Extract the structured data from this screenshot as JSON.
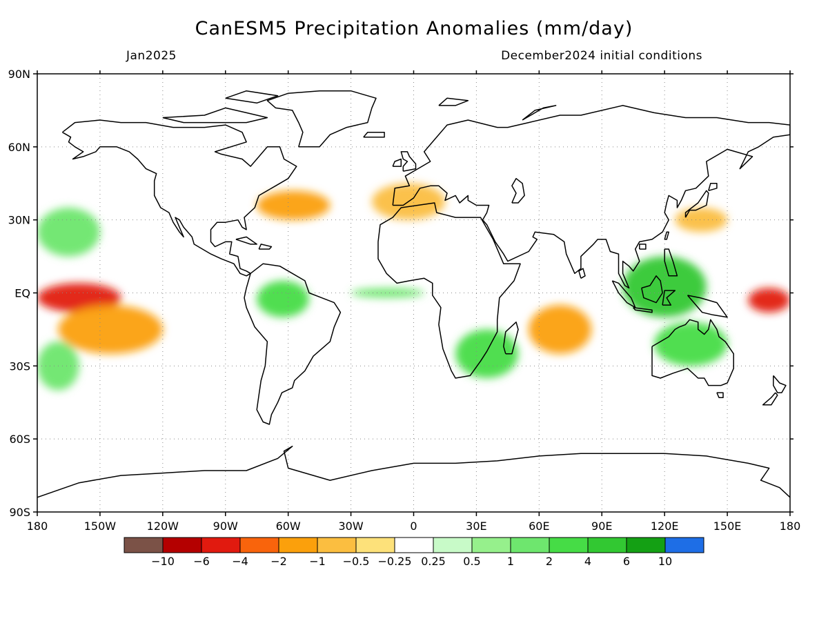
{
  "title": "CanESM5 Precipitation Anomalies (mm/day)",
  "subtitle_left": "Jan2025",
  "subtitle_right": "December2024 initial conditions",
  "axes": {
    "lon_ticks": [
      "180",
      "150W",
      "120W",
      "90W",
      "60W",
      "30W",
      "0",
      "30E",
      "60E",
      "90E",
      "120E",
      "150E",
      "180"
    ],
    "lat_ticks": [
      "90N",
      "60N",
      "30N",
      "EQ",
      "30S",
      "60S",
      "90S"
    ],
    "grid": "dotted"
  },
  "colorbar": {
    "colors": [
      "#7b5247",
      "#b40000",
      "#e11a0f",
      "#f9640c",
      "#fba00c",
      "#fbbe40",
      "#fde17a",
      "#ffffff",
      "#c8fac8",
      "#96f08c",
      "#6ee66e",
      "#46dc46",
      "#32c832",
      "#14a014",
      "#1e6ee6"
    ],
    "labels": [
      "−10",
      "−6",
      "−4",
      "−2",
      "−1",
      "−0.5",
      "−0.25",
      "0.25",
      "0.5",
      "1",
      "2",
      "4",
      "6",
      "10"
    ]
  },
  "chart_data": {
    "type": "heatmap",
    "variable": "Precipitation anomaly",
    "units": "mm/day",
    "lon_range": [
      -180,
      180
    ],
    "lat_range": [
      -90,
      90
    ],
    "contour_levels": [
      -10,
      -6,
      -4,
      -2,
      -1,
      -0.5,
      -0.25,
      0.25,
      0.5,
      1,
      2,
      4,
      6,
      10
    ],
    "regions": [
      {
        "name": "Central equatorial Pacific (dry)",
        "lon": [
          -180,
          -140
        ],
        "lat": [
          -8,
          4
        ],
        "value": -6
      },
      {
        "name": "Western equatorial Pacific near date line (dry)",
        "lon": [
          160,
          180
        ],
        "lat": [
          -8,
          2
        ],
        "value": -6
      },
      {
        "name": "SE Pacific / South Pacific diagonal (dry)",
        "lon": [
          -170,
          -120
        ],
        "lat": [
          -25,
          -5
        ],
        "value": -2
      },
      {
        "name": "Central Indian Ocean (dry)",
        "lon": [
          55,
          85
        ],
        "lat": [
          -25,
          -5
        ],
        "value": -2
      },
      {
        "name": "North Atlantic storm track (dry)",
        "lon": [
          -75,
          -40
        ],
        "lat": [
          30,
          42
        ],
        "value": -2
      },
      {
        "name": "Maritime Continent (wet)",
        "lon": [
          100,
          140
        ],
        "lat": [
          -10,
          15
        ],
        "value": 4
      },
      {
        "name": "Northern Australia (wet)",
        "lon": [
          115,
          150
        ],
        "lat": [
          -30,
          -12
        ],
        "value": 2
      },
      {
        "name": "Southern Africa / SW Indian Ocean (wet)",
        "lon": [
          20,
          50
        ],
        "lat": [
          -35,
          -15
        ],
        "value": 2
      },
      {
        "name": "Northern South America (wet)",
        "lon": [
          -75,
          -50
        ],
        "lat": [
          -10,
          5
        ],
        "value": 2
      },
      {
        "name": "Subtropical North Pacific (wet)",
        "lon": [
          -180,
          -150
        ],
        "lat": [
          15,
          35
        ],
        "value": 1
      },
      {
        "name": "Subtropical South Pacific (wet)",
        "lon": [
          -180,
          -160
        ],
        "lat": [
          -40,
          -20
        ],
        "value": 1
      },
      {
        "name": "Equatorial Atlantic (wet)",
        "lon": [
          -30,
          5
        ],
        "lat": [
          -2,
          2
        ],
        "value": 1
      },
      {
        "name": "Western Pacific subtropics (dry)",
        "lon": [
          125,
          150
        ],
        "lat": [
          25,
          35
        ],
        "value": -1
      },
      {
        "name": "Southern Europe / Mediterranean (dry)",
        "lon": [
          -20,
          15
        ],
        "lat": [
          30,
          45
        ],
        "value": -1
      }
    ]
  }
}
